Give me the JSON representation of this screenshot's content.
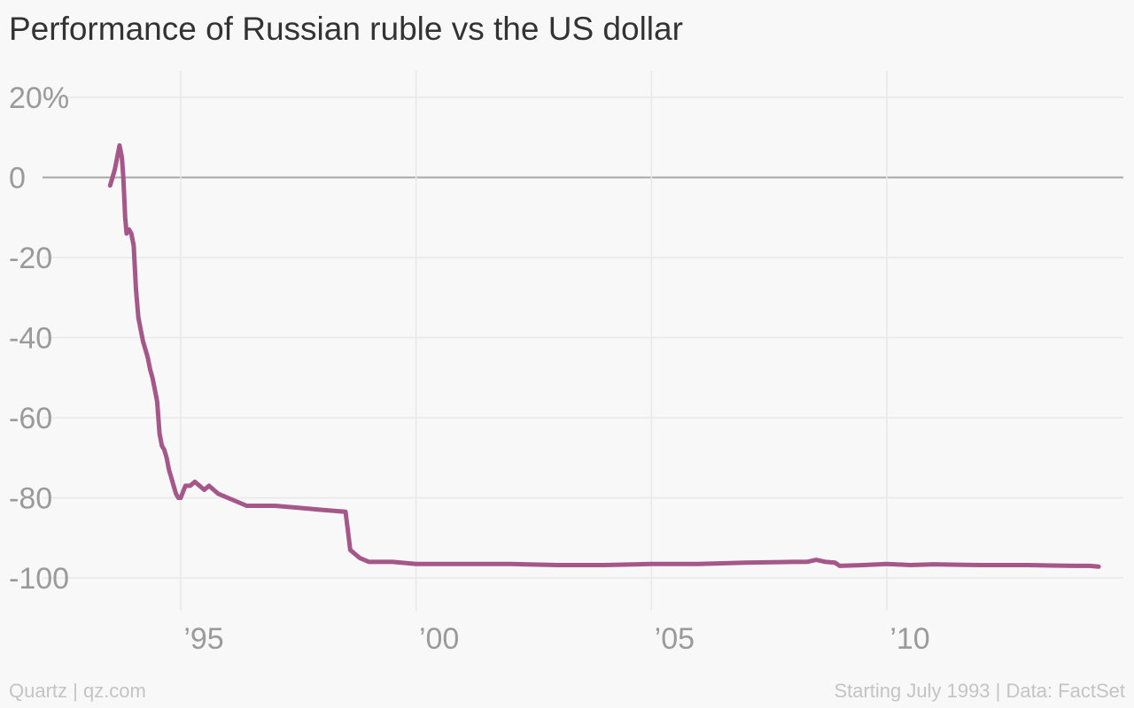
{
  "chart_data": {
    "type": "line",
    "title": "Performance of Russian ruble vs the US dollar",
    "xlabel": "",
    "ylabel": "",
    "xlim": [
      1993.5,
      2014.6
    ],
    "ylim": [
      -100,
      20
    ],
    "grid": true,
    "x_ticks": [
      {
        "value": 1995,
        "label": "’95"
      },
      {
        "value": 2000,
        "label": "’00"
      },
      {
        "value": 2005,
        "label": "’05"
      },
      {
        "value": 2010,
        "label": "’10"
      }
    ],
    "y_ticks": [
      {
        "value": 20,
        "label": "20%"
      },
      {
        "value": 0,
        "label": "0"
      },
      {
        "value": -20,
        "label": "-20"
      },
      {
        "value": -40,
        "label": "-40"
      },
      {
        "value": -60,
        "label": "-60"
      },
      {
        "value": -80,
        "label": "-80"
      },
      {
        "value": -100,
        "label": "-100"
      }
    ],
    "series": [
      {
        "color": "#a6578a",
        "x": [
          1993.5,
          1993.55,
          1993.6,
          1993.65,
          1993.7,
          1993.75,
          1993.78,
          1993.82,
          1993.85,
          1993.9,
          1993.95,
          1994.0,
          1994.05,
          1994.1,
          1994.15,
          1994.2,
          1994.25,
          1994.3,
          1994.35,
          1994.4,
          1994.45,
          1994.5,
          1994.55,
          1994.6,
          1994.65,
          1994.7,
          1994.75,
          1994.8,
          1994.85,
          1994.9,
          1994.95,
          1995.0,
          1995.1,
          1995.2,
          1995.3,
          1995.4,
          1995.5,
          1995.6,
          1995.7,
          1995.8,
          1996.0,
          1996.2,
          1996.4,
          1996.6,
          1996.8,
          1997.0,
          1997.5,
          1998.0,
          1998.5,
          1998.55,
          1998.6,
          1998.7,
          1998.8,
          1999.0,
          1999.5,
          2000.0,
          2001.0,
          2002.0,
          2003.0,
          2004.0,
          2005.0,
          2006.0,
          2007.0,
          2008.0,
          2008.3,
          2008.5,
          2008.7,
          2008.9,
          2009.0,
          2009.5,
          2010.0,
          2010.5,
          2011.0,
          2011.5,
          2012.0,
          2012.5,
          2013.0,
          2013.5,
          2014.0,
          2014.3,
          2014.5
        ],
        "y": [
          -2,
          0,
          2,
          5,
          8,
          5,
          0,
          -10,
          -14,
          -13,
          -14,
          -17,
          -28,
          -35,
          -38,
          -41,
          -43,
          -45,
          -48,
          -50,
          -53,
          -56,
          -64,
          -67,
          -68,
          -70,
          -73,
          -75,
          -77,
          -79,
          -80,
          -80,
          -77,
          -77,
          -76,
          -77,
          -78,
          -77,
          -78,
          -79,
          -80,
          -81,
          -82,
          -82,
          -82,
          -82,
          -82.5,
          -83,
          -83.5,
          -88,
          -93,
          -94,
          -95,
          -96,
          -96,
          -96.5,
          -96.5,
          -96.5,
          -96.8,
          -96.8,
          -96.5,
          -96.5,
          -96.2,
          -96,
          -96,
          -95.5,
          -96,
          -96.2,
          -97,
          -96.8,
          -96.5,
          -96.8,
          -96.6,
          -96.7,
          -96.8,
          -96.8,
          -96.8,
          -96.9,
          -97,
          -97,
          -97.2
        ]
      }
    ]
  },
  "footer": {
    "credit": "Quartz | qz.com",
    "source": "Starting July 1993 | Data: FactSet"
  }
}
